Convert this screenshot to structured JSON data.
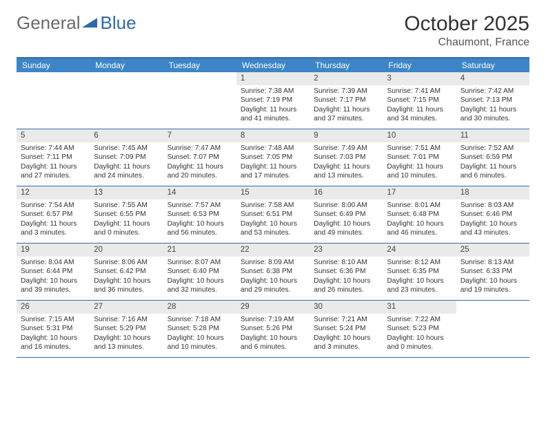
{
  "logo": {
    "part1": "General",
    "part2": "Blue"
  },
  "title": "October 2025",
  "location": "Chaumont, France",
  "colors": {
    "header_bg": "#3d85c6",
    "rule": "#2f6aa8",
    "daynum_bg": "#eaeaea",
    "text": "#333333",
    "logo_gray": "#6a6a6a",
    "logo_blue": "#2f6aa8"
  },
  "day_names": [
    "Sunday",
    "Monday",
    "Tuesday",
    "Wednesday",
    "Thursday",
    "Friday",
    "Saturday"
  ],
  "weeks": [
    [
      {
        "n": "",
        "sunrise": "",
        "sunset": "",
        "daylight": ""
      },
      {
        "n": "",
        "sunrise": "",
        "sunset": "",
        "daylight": ""
      },
      {
        "n": "",
        "sunrise": "",
        "sunset": "",
        "daylight": ""
      },
      {
        "n": "1",
        "sunrise": "Sunrise: 7:38 AM",
        "sunset": "Sunset: 7:19 PM",
        "daylight": "Daylight: 11 hours and 41 minutes."
      },
      {
        "n": "2",
        "sunrise": "Sunrise: 7:39 AM",
        "sunset": "Sunset: 7:17 PM",
        "daylight": "Daylight: 11 hours and 37 minutes."
      },
      {
        "n": "3",
        "sunrise": "Sunrise: 7:41 AM",
        "sunset": "Sunset: 7:15 PM",
        "daylight": "Daylight: 11 hours and 34 minutes."
      },
      {
        "n": "4",
        "sunrise": "Sunrise: 7:42 AM",
        "sunset": "Sunset: 7:13 PM",
        "daylight": "Daylight: 11 hours and 30 minutes."
      }
    ],
    [
      {
        "n": "5",
        "sunrise": "Sunrise: 7:44 AM",
        "sunset": "Sunset: 7:11 PM",
        "daylight": "Daylight: 11 hours and 27 minutes."
      },
      {
        "n": "6",
        "sunrise": "Sunrise: 7:45 AM",
        "sunset": "Sunset: 7:09 PM",
        "daylight": "Daylight: 11 hours and 24 minutes."
      },
      {
        "n": "7",
        "sunrise": "Sunrise: 7:47 AM",
        "sunset": "Sunset: 7:07 PM",
        "daylight": "Daylight: 11 hours and 20 minutes."
      },
      {
        "n": "8",
        "sunrise": "Sunrise: 7:48 AM",
        "sunset": "Sunset: 7:05 PM",
        "daylight": "Daylight: 11 hours and 17 minutes."
      },
      {
        "n": "9",
        "sunrise": "Sunrise: 7:49 AM",
        "sunset": "Sunset: 7:03 PM",
        "daylight": "Daylight: 11 hours and 13 minutes."
      },
      {
        "n": "10",
        "sunrise": "Sunrise: 7:51 AM",
        "sunset": "Sunset: 7:01 PM",
        "daylight": "Daylight: 11 hours and 10 minutes."
      },
      {
        "n": "11",
        "sunrise": "Sunrise: 7:52 AM",
        "sunset": "Sunset: 6:59 PM",
        "daylight": "Daylight: 11 hours and 6 minutes."
      }
    ],
    [
      {
        "n": "12",
        "sunrise": "Sunrise: 7:54 AM",
        "sunset": "Sunset: 6:57 PM",
        "daylight": "Daylight: 11 hours and 3 minutes."
      },
      {
        "n": "13",
        "sunrise": "Sunrise: 7:55 AM",
        "sunset": "Sunset: 6:55 PM",
        "daylight": "Daylight: 11 hours and 0 minutes."
      },
      {
        "n": "14",
        "sunrise": "Sunrise: 7:57 AM",
        "sunset": "Sunset: 6:53 PM",
        "daylight": "Daylight: 10 hours and 56 minutes."
      },
      {
        "n": "15",
        "sunrise": "Sunrise: 7:58 AM",
        "sunset": "Sunset: 6:51 PM",
        "daylight": "Daylight: 10 hours and 53 minutes."
      },
      {
        "n": "16",
        "sunrise": "Sunrise: 8:00 AM",
        "sunset": "Sunset: 6:49 PM",
        "daylight": "Daylight: 10 hours and 49 minutes."
      },
      {
        "n": "17",
        "sunrise": "Sunrise: 8:01 AM",
        "sunset": "Sunset: 6:48 PM",
        "daylight": "Daylight: 10 hours and 46 minutes."
      },
      {
        "n": "18",
        "sunrise": "Sunrise: 8:03 AM",
        "sunset": "Sunset: 6:46 PM",
        "daylight": "Daylight: 10 hours and 43 minutes."
      }
    ],
    [
      {
        "n": "19",
        "sunrise": "Sunrise: 8:04 AM",
        "sunset": "Sunset: 6:44 PM",
        "daylight": "Daylight: 10 hours and 39 minutes."
      },
      {
        "n": "20",
        "sunrise": "Sunrise: 8:06 AM",
        "sunset": "Sunset: 6:42 PM",
        "daylight": "Daylight: 10 hours and 36 minutes."
      },
      {
        "n": "21",
        "sunrise": "Sunrise: 8:07 AM",
        "sunset": "Sunset: 6:40 PM",
        "daylight": "Daylight: 10 hours and 32 minutes."
      },
      {
        "n": "22",
        "sunrise": "Sunrise: 8:09 AM",
        "sunset": "Sunset: 6:38 PM",
        "daylight": "Daylight: 10 hours and 29 minutes."
      },
      {
        "n": "23",
        "sunrise": "Sunrise: 8:10 AM",
        "sunset": "Sunset: 6:36 PM",
        "daylight": "Daylight: 10 hours and 26 minutes."
      },
      {
        "n": "24",
        "sunrise": "Sunrise: 8:12 AM",
        "sunset": "Sunset: 6:35 PM",
        "daylight": "Daylight: 10 hours and 23 minutes."
      },
      {
        "n": "25",
        "sunrise": "Sunrise: 8:13 AM",
        "sunset": "Sunset: 6:33 PM",
        "daylight": "Daylight: 10 hours and 19 minutes."
      }
    ],
    [
      {
        "n": "26",
        "sunrise": "Sunrise: 7:15 AM",
        "sunset": "Sunset: 5:31 PM",
        "daylight": "Daylight: 10 hours and 16 minutes."
      },
      {
        "n": "27",
        "sunrise": "Sunrise: 7:16 AM",
        "sunset": "Sunset: 5:29 PM",
        "daylight": "Daylight: 10 hours and 13 minutes."
      },
      {
        "n": "28",
        "sunrise": "Sunrise: 7:18 AM",
        "sunset": "Sunset: 5:28 PM",
        "daylight": "Daylight: 10 hours and 10 minutes."
      },
      {
        "n": "29",
        "sunrise": "Sunrise: 7:19 AM",
        "sunset": "Sunset: 5:26 PM",
        "daylight": "Daylight: 10 hours and 6 minutes."
      },
      {
        "n": "30",
        "sunrise": "Sunrise: 7:21 AM",
        "sunset": "Sunset: 5:24 PM",
        "daylight": "Daylight: 10 hours and 3 minutes."
      },
      {
        "n": "31",
        "sunrise": "Sunrise: 7:22 AM",
        "sunset": "Sunset: 5:23 PM",
        "daylight": "Daylight: 10 hours and 0 minutes."
      },
      {
        "n": "",
        "sunrise": "",
        "sunset": "",
        "daylight": ""
      }
    ]
  ]
}
